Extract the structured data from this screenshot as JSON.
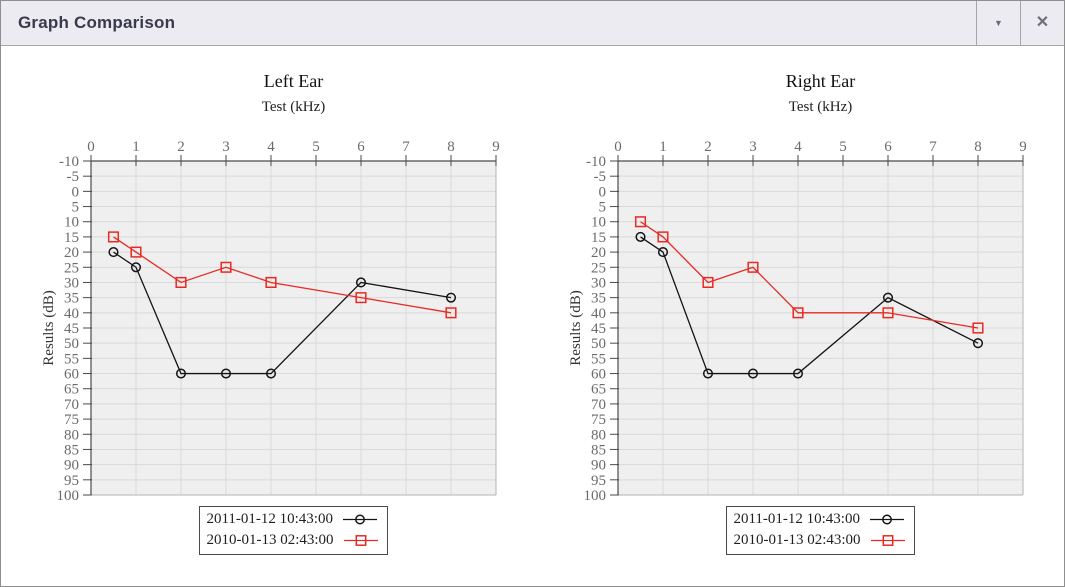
{
  "window": {
    "title": "Graph Comparison",
    "icons": {
      "collapse": "▼",
      "close": "✕"
    }
  },
  "colors": {
    "series_black": "#141414",
    "series_red": "#e82a25",
    "titlebar_bg": "#ebebf1",
    "plot_bg": "#efefef",
    "grid": "#d9d9d9"
  },
  "chart_data": [
    {
      "type": "line",
      "title": "Left Ear",
      "xlabel": "Test (kHz)",
      "ylabel": "Results (dB)",
      "x": [
        0.5,
        1,
        2,
        3,
        4,
        6,
        8
      ],
      "x_ticks": [
        0,
        1,
        2,
        3,
        4,
        5,
        6,
        7,
        8,
        9
      ],
      "xlim": [
        0,
        9
      ],
      "ylim": [
        -10,
        100
      ],
      "y_tick_step": 5,
      "y_inverted": true,
      "grid": true,
      "legend_position": "bottom",
      "series": [
        {
          "name": "2011-01-12 10:43:00",
          "color": "#141414",
          "marker": "circle",
          "values": [
            20,
            25,
            60,
            60,
            60,
            30,
            35
          ]
        },
        {
          "name": "2010-01-13 02:43:00",
          "color": "#e82a25",
          "marker": "square",
          "values": [
            15,
            20,
            30,
            25,
            30,
            35,
            40
          ]
        }
      ]
    },
    {
      "type": "line",
      "title": "Right Ear",
      "xlabel": "Test (kHz)",
      "ylabel": "Results (dB)",
      "x": [
        0.5,
        1,
        2,
        3,
        4,
        6,
        8
      ],
      "x_ticks": [
        0,
        1,
        2,
        3,
        4,
        5,
        6,
        7,
        8,
        9
      ],
      "xlim": [
        0,
        9
      ],
      "ylim": [
        -10,
        100
      ],
      "y_tick_step": 5,
      "y_inverted": true,
      "grid": true,
      "legend_position": "bottom",
      "series": [
        {
          "name": "2011-01-12 10:43:00",
          "color": "#141414",
          "marker": "circle",
          "values": [
            15,
            20,
            60,
            60,
            60,
            35,
            50
          ]
        },
        {
          "name": "2010-01-13 02:43:00",
          "color": "#e82a25",
          "marker": "square",
          "values": [
            10,
            15,
            30,
            25,
            40,
            40,
            45
          ]
        }
      ]
    }
  ]
}
